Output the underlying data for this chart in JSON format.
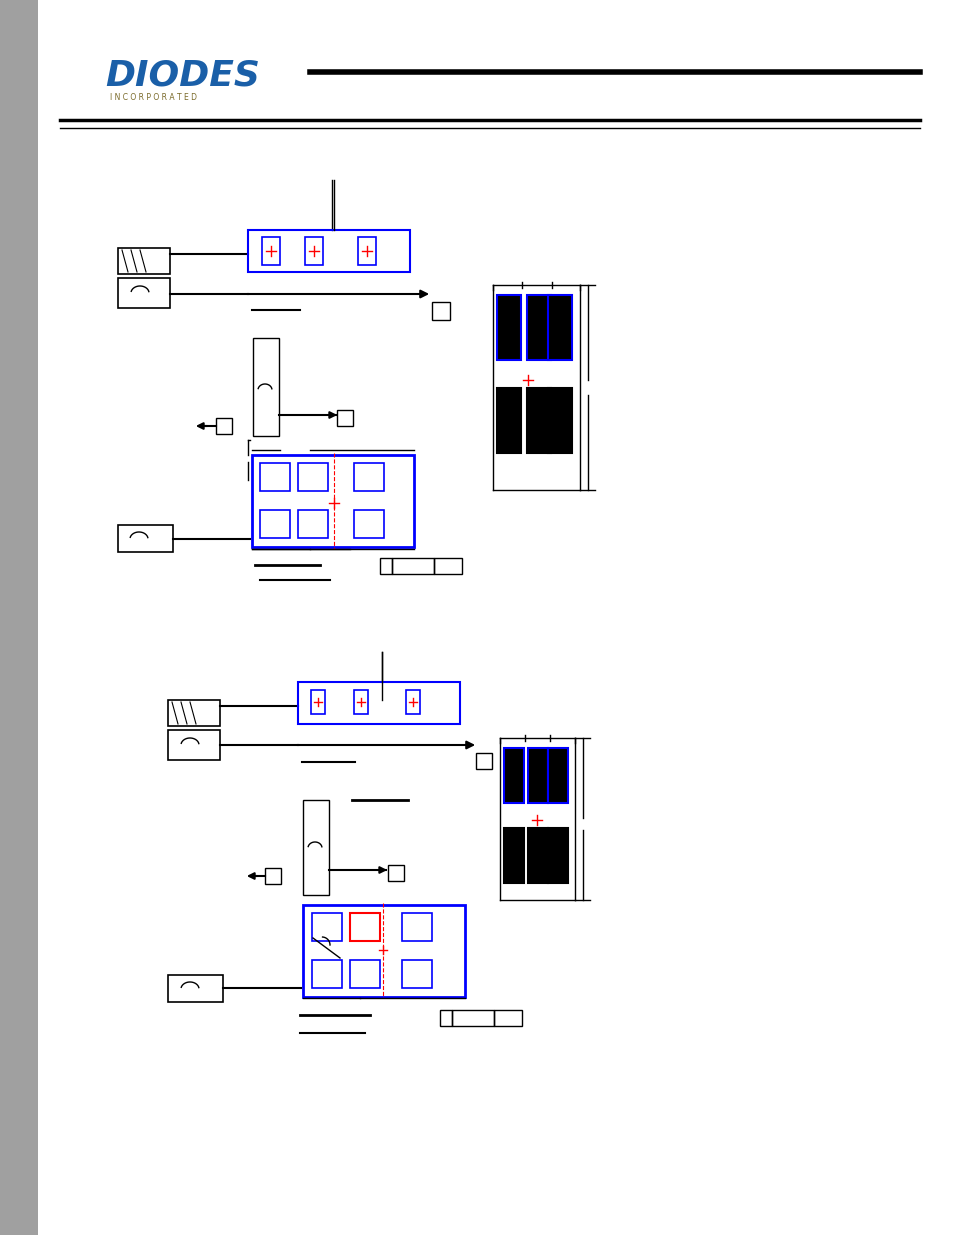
{
  "bg_color": "#ffffff",
  "left_bar_color": "#808080",
  "logo_blue": "#1a5fa8",
  "title_line_color": "#000000",
  "blue_rect_color": "#0000ff",
  "red_cross_color": "#ff0000",
  "black_pad_color": "#000000"
}
